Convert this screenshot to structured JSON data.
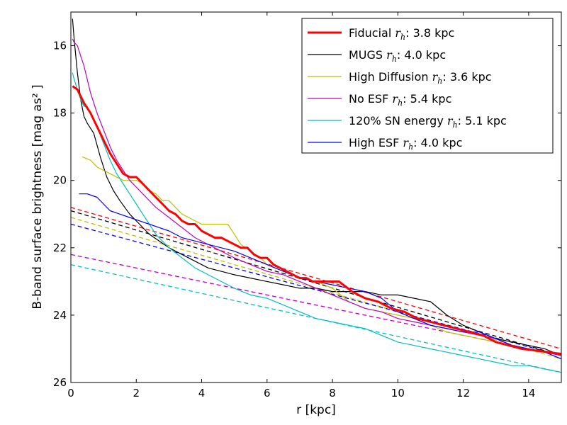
{
  "chart_data": {
    "type": "line",
    "title": "",
    "xlabel": "r [kpc]",
    "ylabel": "B-band surface brightness [mag as² ]",
    "xlim": [
      0,
      15
    ],
    "ylim": [
      26,
      15
    ],
    "y_inverted": true,
    "xticks": [
      0,
      2,
      4,
      6,
      8,
      10,
      12,
      14
    ],
    "yticks": [
      16,
      18,
      20,
      22,
      24,
      26
    ],
    "legend_position": "top-right",
    "series": [
      {
        "name": "Fiducial",
        "legend_label": "Fiducial r_h: 3.8 kpc",
        "label_prefix": "Fiducial ",
        "label_suffix": ": 3.8 kpc",
        "rh": "3.8 kpc",
        "color": "#ff0000",
        "width": 3,
        "x": [
          0.05,
          0.2,
          0.4,
          0.6,
          0.8,
          1.0,
          1.2,
          1.4,
          1.6,
          1.8,
          2.0,
          2.2,
          2.4,
          2.6,
          2.8,
          3.0,
          3.2,
          3.4,
          3.6,
          3.8,
          4.0,
          4.2,
          4.4,
          4.6,
          4.8,
          5.0,
          5.2,
          5.4,
          5.6,
          5.8,
          6.0,
          6.2,
          6.4,
          6.6,
          6.8,
          7.0,
          7.2,
          7.4,
          7.6,
          7.8,
          8.0,
          8.2,
          8.6,
          9.0,
          9.4,
          9.8,
          10.2,
          10.6,
          11.0,
          11.4,
          11.8,
          12.2,
          12.6,
          13.0,
          13.4,
          13.8,
          14.2,
          14.6,
          15.0
        ],
        "y": [
          17.2,
          17.3,
          17.7,
          18.0,
          18.4,
          18.8,
          19.2,
          19.5,
          19.8,
          19.9,
          19.9,
          20.1,
          20.3,
          20.5,
          20.7,
          20.9,
          21.0,
          21.2,
          21.3,
          21.3,
          21.5,
          21.6,
          21.7,
          21.7,
          21.8,
          21.9,
          22.0,
          22.0,
          22.2,
          22.3,
          22.3,
          22.5,
          22.6,
          22.7,
          22.8,
          22.9,
          22.9,
          23.0,
          23.0,
          23.0,
          23.0,
          23.0,
          23.3,
          23.5,
          23.6,
          23.8,
          23.9,
          24.1,
          24.2,
          24.3,
          24.4,
          24.5,
          24.6,
          24.8,
          24.9,
          25.0,
          25.05,
          25.1,
          25.15
        ]
      },
      {
        "name": "MUGS",
        "legend_label": "MUGS r_h: 4.0 kpc",
        "label_prefix": "MUGS ",
        "label_suffix": ": 4.0 kpc",
        "rh": "4.0 kpc",
        "color": "#000000",
        "width": 1.2,
        "x": [
          0.05,
          0.1,
          0.2,
          0.3,
          0.4,
          0.5,
          0.7,
          0.9,
          1.1,
          1.3,
          1.5,
          1.8,
          2.1,
          2.4,
          2.7,
          3.0,
          3.4,
          3.8,
          4.2,
          4.6,
          5.0,
          5.5,
          6.0,
          6.5,
          7.0,
          7.5,
          8.0,
          8.5,
          9.0,
          9.5,
          10.0,
          10.5,
          11.0,
          11.5,
          12.0,
          12.5,
          13.0,
          13.5,
          14.0,
          14.5,
          15.0
        ],
        "y": [
          15.2,
          15.8,
          16.8,
          17.6,
          18.1,
          18.3,
          18.6,
          19.3,
          19.9,
          20.3,
          20.6,
          21.0,
          21.3,
          21.6,
          21.8,
          22.0,
          22.2,
          22.4,
          22.6,
          22.7,
          22.8,
          22.9,
          23.0,
          23.1,
          23.2,
          23.2,
          23.3,
          23.3,
          23.3,
          23.4,
          23.4,
          23.5,
          23.6,
          24.0,
          24.3,
          24.5,
          24.7,
          24.8,
          24.9,
          25.0,
          25.2
        ]
      },
      {
        "name": "High Diffusion",
        "legend_label": "High Diffusion r_h: 3.6 kpc",
        "label_prefix": "High Diffusion ",
        "label_suffix": ": 3.6 kpc",
        "rh": "3.6 kpc",
        "color": "#bfbf00",
        "width": 1.2,
        "x": [
          0.35,
          0.6,
          0.8,
          1.0,
          1.2,
          1.4,
          1.6,
          1.8,
          2.0,
          2.2,
          2.4,
          2.6,
          2.8,
          3.0,
          3.2,
          3.4,
          3.6,
          3.8,
          4.0,
          4.2,
          4.5,
          4.8,
          5.0,
          5.2,
          5.5,
          5.8,
          6.0,
          6.5,
          7.0,
          7.5,
          8.0,
          8.5,
          9.0,
          9.5,
          10.0,
          10.5,
          11.0,
          11.5,
          12.0,
          12.5,
          13.0,
          13.5,
          14.0,
          14.5,
          15.0
        ],
        "y": [
          19.3,
          19.4,
          19.6,
          19.7,
          19.8,
          19.9,
          20.0,
          20.0,
          20.0,
          20.1,
          20.3,
          20.4,
          20.6,
          20.6,
          20.8,
          21.0,
          21.1,
          21.2,
          21.3,
          21.3,
          21.3,
          21.3,
          21.6,
          21.9,
          22.1,
          22.3,
          22.5,
          22.7,
          22.9,
          23.0,
          23.2,
          23.6,
          23.8,
          23.9,
          24.0,
          24.1,
          24.3,
          24.5,
          24.6,
          24.7,
          24.8,
          24.9,
          25.0,
          25.1,
          25.3
        ]
      },
      {
        "name": "No ESF",
        "legend_label": "No ESF r_h: 5.4 kpc",
        "label_prefix": "No ESF ",
        "label_suffix": ": 5.4 kpc",
        "rh": "5.4 kpc",
        "color": "#bf00bf",
        "width": 1.2,
        "x": [
          0.05,
          0.1,
          0.2,
          0.3,
          0.4,
          0.5,
          0.6,
          0.8,
          1.0,
          1.2,
          1.4,
          1.6,
          1.8,
          2.0,
          2.3,
          2.6,
          3.0,
          3.4,
          3.8,
          4.2,
          4.6,
          5.0,
          5.5,
          6.0,
          6.5,
          7.0,
          7.5,
          8.0,
          8.5,
          9.0,
          9.5,
          10.0,
          10.5,
          11.0,
          11.5,
          12.0,
          12.5,
          13.0,
          13.5,
          14.0,
          14.5,
          15.0
        ],
        "y": [
          15.8,
          15.9,
          16.0,
          16.3,
          16.6,
          17.0,
          17.4,
          18.0,
          18.5,
          19.0,
          19.4,
          19.7,
          20.0,
          20.2,
          20.5,
          20.8,
          21.1,
          21.4,
          21.7,
          21.9,
          22.1,
          22.3,
          22.5,
          22.7,
          22.8,
          23.0,
          23.2,
          23.4,
          23.6,
          23.8,
          23.9,
          24.1,
          24.2,
          24.3,
          24.4,
          24.5,
          24.6,
          24.7,
          24.9,
          25.0,
          25.1,
          25.2
        ]
      },
      {
        "name": "120% SN energy",
        "legend_label": "120% SN energy r_h: 5.1 kpc",
        "label_prefix": "120% SN energy ",
        "label_suffix": ": 5.1 kpc",
        "rh": "5.1 kpc",
        "color": "#00bfbf",
        "width": 1.2,
        "x": [
          0.05,
          0.1,
          0.2,
          0.3,
          0.4,
          0.5,
          0.6,
          0.8,
          1.0,
          1.2,
          1.4,
          1.6,
          1.8,
          2.0,
          2.2,
          2.4,
          2.6,
          3.0,
          3.4,
          3.8,
          4.2,
          4.6,
          5.0,
          5.5,
          6.0,
          6.5,
          7.0,
          7.5,
          8.0,
          8.5,
          9.0,
          9.5,
          10.0,
          10.5,
          11.0,
          11.5,
          12.0,
          12.5,
          13.0,
          13.5,
          14.0,
          14.5,
          15.0
        ],
        "y": [
          16.8,
          17.0,
          17.3,
          17.6,
          17.8,
          17.8,
          18.0,
          18.4,
          18.9,
          19.4,
          19.8,
          20.1,
          20.4,
          20.7,
          21.0,
          21.3,
          21.6,
          22.0,
          22.3,
          22.6,
          22.8,
          23.0,
          23.2,
          23.4,
          23.5,
          23.7,
          23.9,
          24.1,
          24.2,
          24.3,
          24.4,
          24.6,
          24.8,
          24.9,
          25.0,
          25.1,
          25.2,
          25.3,
          25.4,
          25.5,
          25.5,
          25.6,
          25.7
        ]
      },
      {
        "name": "High ESF",
        "legend_label": "High ESF r_h: 4.0 kpc",
        "label_prefix": "High ESF ",
        "label_suffix": ": 4.0 kpc",
        "rh": "4.0 kpc",
        "color": "#0000ff",
        "width": 1.2,
        "x": [
          0.25,
          0.5,
          0.8,
          1.0,
          1.2,
          1.5,
          1.8,
          2.1,
          2.4,
          2.7,
          3.0,
          3.4,
          3.8,
          4.2,
          4.6,
          5.0,
          5.5,
          6.0,
          6.5,
          7.0,
          7.5,
          8.0,
          8.5,
          9.0,
          9.5,
          10.0,
          10.5,
          11.0,
          11.5,
          12.0,
          12.5,
          13.0,
          13.5,
          14.0,
          14.5,
          15.0
        ],
        "y": [
          20.4,
          20.4,
          20.5,
          20.7,
          20.9,
          21.0,
          21.1,
          21.2,
          21.3,
          21.4,
          21.5,
          21.7,
          21.8,
          21.9,
          22.0,
          22.1,
          22.3,
          22.5,
          22.7,
          22.9,
          23.0,
          23.1,
          23.2,
          23.3,
          23.5,
          23.9,
          24.1,
          24.3,
          24.4,
          24.5,
          24.5,
          24.7,
          24.9,
          25.0,
          25.1,
          25.3
        ]
      }
    ],
    "fits": [
      {
        "color": "#ff0000",
        "x": [
          0,
          15
        ],
        "y": [
          20.8,
          25.0
        ]
      },
      {
        "color": "#000000",
        "x": [
          0,
          15
        ],
        "y": [
          20.9,
          25.2
        ]
      },
      {
        "color": "#bfbf00",
        "x": [
          0,
          15
        ],
        "y": [
          21.1,
          25.3
        ]
      },
      {
        "color": "#bf00bf",
        "x": [
          0,
          15
        ],
        "y": [
          22.2,
          25.2
        ]
      },
      {
        "color": "#00bfbf",
        "x": [
          0,
          15
        ],
        "y": [
          22.5,
          25.7
        ]
      },
      {
        "color": "#0000ff",
        "x": [
          0,
          15
        ],
        "y": [
          21.3,
          25.2
        ]
      }
    ]
  }
}
